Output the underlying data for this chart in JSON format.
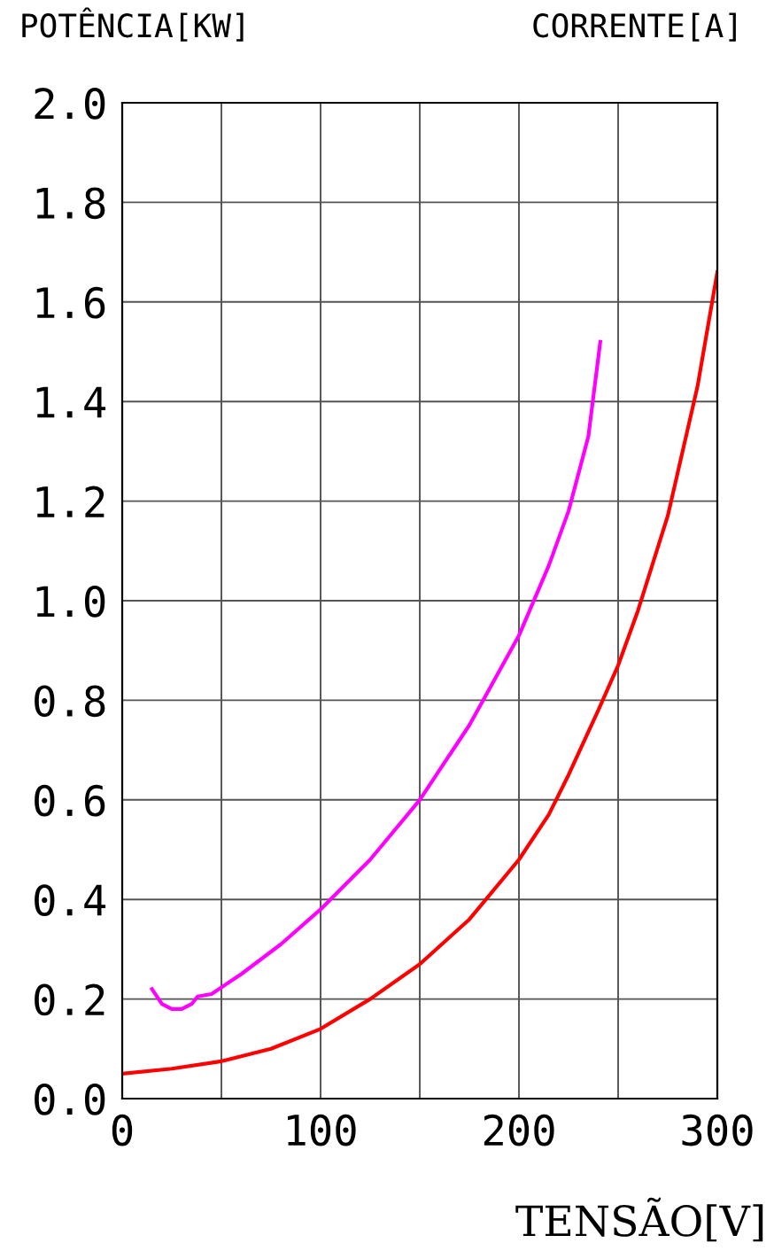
{
  "chart_data": {
    "type": "line",
    "ylabel": "POTÊNCIA[KW]",
    "xlabel": "TENSÃO[V]",
    "annotations": [
      "CORRENTE[A]"
    ],
    "series": [
      {
        "color": "#ff00ff",
        "x": [
          15,
          20,
          25,
          30,
          35,
          38,
          45,
          60,
          80,
          100,
          125,
          150,
          175,
          200,
          215,
          225,
          235,
          241
        ],
        "values": [
          0.22,
          0.19,
          0.18,
          0.18,
          0.19,
          0.205,
          0.21,
          0.25,
          0.31,
          0.38,
          0.48,
          0.6,
          0.75,
          0.93,
          1.07,
          1.18,
          1.33,
          1.52
        ]
      },
      {
        "color": "#ff0000",
        "x": [
          0,
          25,
          50,
          75,
          100,
          125,
          150,
          175,
          200,
          215,
          225,
          240,
          250,
          260,
          275,
          290,
          300
        ],
        "values": [
          0.05,
          0.06,
          0.075,
          0.1,
          0.14,
          0.2,
          0.27,
          0.36,
          0.48,
          0.57,
          0.65,
          0.78,
          0.87,
          0.98,
          1.17,
          1.43,
          1.66
        ]
      }
    ],
    "xlim": [
      0,
      300
    ],
    "xticks": [
      0,
      {
        "value": 50,
        "label": null
      },
      100,
      {
        "value": 150,
        "label": null
      },
      200,
      {
        "value": 250,
        "label": null
      },
      300
    ],
    "ylim": [
      0,
      2.0
    ],
    "yticks": [
      {
        "value": 0,
        "label": "0.0"
      },
      {
        "value": 0.2,
        "label": "0.2"
      },
      {
        "value": 0.4,
        "label": "0.4"
      },
      {
        "value": 0.6,
        "label": "0.6"
      },
      {
        "value": 0.8,
        "label": "0.8"
      },
      {
        "value": 1.0,
        "label": "1.0"
      },
      {
        "value": 1.2,
        "label": "1.2"
      },
      {
        "value": 1.4,
        "label": "1.4"
      },
      {
        "value": 1.6,
        "label": "1.6"
      },
      {
        "value": 1.8,
        "label": "1.8"
      },
      {
        "value": 2.0,
        "label": "2.0"
      }
    ],
    "grid": true
  }
}
